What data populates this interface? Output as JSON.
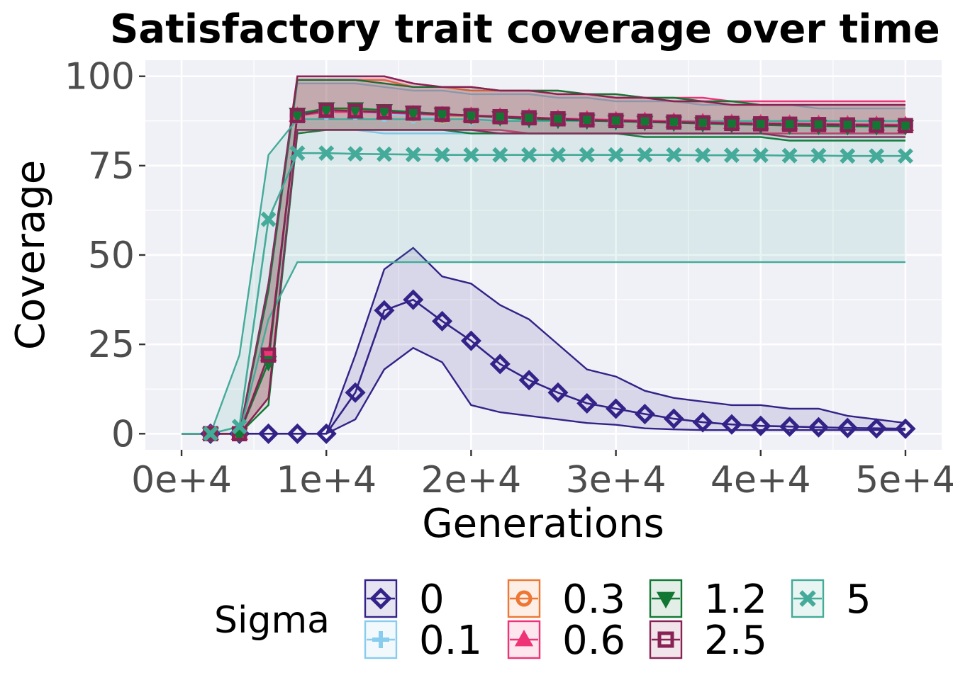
{
  "chart_data": {
    "type": "line",
    "title": "Satisfactory trait coverage over time",
    "xlabel": "Generations",
    "ylabel": "Coverage",
    "xlim": [
      -2500,
      52500
    ],
    "ylim": [
      -4.5,
      104.5
    ],
    "x_ticks": [
      0,
      10000,
      20000,
      30000,
      40000,
      50000
    ],
    "x_tick_labels": [
      "0e+4",
      "1e+4",
      "2e+4",
      "3e+4",
      "4e+4",
      "5e+4"
    ],
    "y_ticks": [
      0,
      25,
      50,
      75,
      100
    ],
    "y_tick_labels": [
      "0",
      "25",
      "50",
      "75",
      "100"
    ],
    "grid": true,
    "legend": {
      "title": "Sigma",
      "position": "bottom"
    },
    "series": [
      {
        "name": "0",
        "color": "#332288",
        "marker": "diamond",
        "x": [
          0,
          2000,
          4000,
          6000,
          8000,
          10000,
          12000,
          14000,
          16000,
          18000,
          20000,
          22000,
          24000,
          26000,
          28000,
          30000,
          32000,
          34000,
          36000,
          38000,
          40000,
          42000,
          44000,
          46000,
          48000,
          50000
        ],
        "y": [
          0,
          0,
          0,
          0,
          0,
          0,
          11.5,
          34.5,
          37.5,
          31.5,
          26,
          19.5,
          15,
          11.5,
          8.5,
          7,
          5.5,
          4.2,
          3.2,
          2.6,
          2.2,
          2,
          1.8,
          1.6,
          1.5,
          1.4
        ],
        "lower": [
          0,
          0,
          0,
          0,
          0,
          0,
          4,
          18,
          24,
          20,
          8,
          6,
          5,
          4,
          3,
          2.5,
          1.5,
          1.2,
          1,
          1,
          1,
          1,
          1,
          1,
          1,
          1
        ],
        "upper": [
          0,
          0,
          0,
          0,
          0,
          0,
          22,
          46,
          52,
          44,
          42,
          36,
          32,
          25,
          18,
          16,
          12,
          10,
          9,
          8,
          8,
          7,
          7,
          5,
          4,
          3
        ]
      },
      {
        "name": "0.1",
        "color": "#88CCEE",
        "marker": "plus",
        "x": [
          0,
          2000,
          4000,
          6000,
          8000,
          10000,
          12000,
          14000,
          16000,
          18000,
          20000,
          22000,
          24000,
          26000,
          28000,
          30000,
          32000,
          34000,
          36000,
          38000,
          40000,
          42000,
          44000,
          46000,
          48000,
          50000
        ],
        "y": [
          0,
          0,
          0,
          21,
          89,
          90,
          90,
          89.5,
          89,
          88.8,
          88.5,
          88.3,
          88,
          87.8,
          87.6,
          87.4,
          87.3,
          87.1,
          87,
          86.9,
          86.8,
          86.7,
          86.6,
          86.5,
          86.4,
          86.3
        ],
        "lower": [
          0,
          0,
          0,
          10,
          85,
          85,
          85,
          84,
          84,
          84,
          84,
          84,
          84,
          84,
          84,
          84,
          84,
          84,
          84,
          84,
          84,
          84,
          84,
          84,
          84,
          84
        ],
        "upper": [
          0,
          0,
          0,
          40,
          98,
          98,
          98,
          97,
          96,
          96,
          95,
          95,
          95,
          94,
          94,
          93,
          93,
          93,
          92,
          92,
          92,
          92,
          91,
          91,
          91,
          91
        ]
      },
      {
        "name": "0.3",
        "color": "#EE7733",
        "marker": "circle",
        "x": [
          0,
          2000,
          4000,
          6000,
          8000,
          10000,
          12000,
          14000,
          16000,
          18000,
          20000,
          22000,
          24000,
          26000,
          28000,
          30000,
          32000,
          34000,
          36000,
          38000,
          40000,
          42000,
          44000,
          46000,
          48000,
          50000
        ],
        "y": [
          0,
          0,
          0,
          22,
          89,
          90.5,
          90.5,
          90,
          89.5,
          89,
          88.8,
          88.5,
          88.3,
          88,
          87.8,
          87.6,
          87.4,
          87.2,
          87,
          86.9,
          86.8,
          86.7,
          86.6,
          86.5,
          86.4,
          86.3
        ],
        "lower": [
          0,
          0,
          0,
          10,
          84,
          85,
          85,
          85,
          85,
          85,
          85,
          85,
          84,
          84,
          84,
          84,
          84,
          84,
          84,
          84,
          84,
          84,
          84,
          84,
          84,
          84
        ],
        "upper": [
          0,
          0,
          0,
          42,
          99,
          99,
          99,
          99,
          97,
          97,
          96,
          96,
          96,
          95,
          95,
          94,
          94,
          93,
          93,
          92,
          92,
          92,
          92,
          92,
          92,
          92
        ]
      },
      {
        "name": "0.6",
        "color": "#EE3377",
        "marker": "triangle",
        "x": [
          0,
          2000,
          4000,
          6000,
          8000,
          10000,
          12000,
          14000,
          16000,
          18000,
          20000,
          22000,
          24000,
          26000,
          28000,
          30000,
          32000,
          34000,
          36000,
          38000,
          40000,
          42000,
          44000,
          46000,
          48000,
          50000
        ],
        "y": [
          0,
          0,
          0,
          22,
          89,
          90,
          90,
          89.8,
          89.5,
          89.2,
          89,
          88.8,
          88.5,
          88.2,
          88,
          87.8,
          87.6,
          87.4,
          87.2,
          87,
          86.9,
          86.8,
          86.7,
          86.6,
          86.5,
          86.4
        ],
        "lower": [
          0,
          0,
          0,
          10,
          85,
          85,
          85,
          85,
          85,
          85,
          85,
          85,
          84,
          84,
          84,
          84,
          84,
          84,
          84,
          84,
          84,
          84,
          84,
          84,
          84,
          84
        ],
        "upper": [
          0,
          0,
          0,
          42,
          100,
          100,
          100,
          100,
          98,
          97,
          97,
          96,
          96,
          96,
          95,
          95,
          94,
          94,
          94,
          93,
          93,
          93,
          93,
          93,
          93,
          93
        ]
      },
      {
        "name": "1.2",
        "color": "#117733",
        "marker": "triangle-down",
        "x": [
          0,
          2000,
          4000,
          6000,
          8000,
          10000,
          12000,
          14000,
          16000,
          18000,
          20000,
          22000,
          24000,
          26000,
          28000,
          30000,
          32000,
          34000,
          36000,
          38000,
          40000,
          42000,
          44000,
          46000,
          48000,
          50000
        ],
        "y": [
          0,
          0,
          0,
          20,
          89.5,
          91,
          91,
          90.5,
          90,
          89.5,
          89,
          88.5,
          88,
          87.8,
          87.6,
          87.4,
          87.2,
          87,
          86.8,
          86.6,
          86.4,
          86.2,
          86.1,
          86,
          86,
          86
        ],
        "lower": [
          0,
          0,
          0,
          8,
          84,
          85,
          85,
          85,
          85,
          85,
          84,
          84,
          84,
          84,
          84,
          84,
          83,
          83,
          83,
          83,
          83,
          82,
          82,
          82,
          82,
          82
        ],
        "upper": [
          0,
          0,
          0,
          40,
          99,
          99,
          99,
          98,
          97,
          97,
          97,
          96,
          96,
          96,
          95,
          95,
          94,
          94,
          93,
          93,
          92,
          92,
          92,
          92,
          92,
          92
        ]
      },
      {
        "name": "2.5",
        "color": "#882255",
        "marker": "square",
        "x": [
          0,
          2000,
          4000,
          6000,
          8000,
          10000,
          12000,
          14000,
          16000,
          18000,
          20000,
          22000,
          24000,
          26000,
          28000,
          30000,
          32000,
          34000,
          36000,
          38000,
          40000,
          42000,
          44000,
          46000,
          48000,
          50000
        ],
        "y": [
          0,
          0,
          0,
          22,
          89,
          90.5,
          90.3,
          90,
          89.7,
          89.4,
          89,
          88.7,
          88.4,
          88.1,
          87.8,
          87.6,
          87.4,
          87.2,
          87,
          86.8,
          86.7,
          86.6,
          86.5,
          86.4,
          86.3,
          86.2
        ],
        "lower": [
          0,
          0,
          0,
          10,
          85,
          85,
          85,
          85,
          85,
          85,
          85,
          84,
          84,
          84,
          84,
          84,
          84,
          84,
          84,
          84,
          84,
          83,
          83,
          83,
          83,
          83
        ],
        "upper": [
          0,
          0,
          0,
          42,
          100,
          100,
          100,
          100,
          98,
          97,
          97,
          96,
          96,
          95,
          95,
          94,
          94,
          93,
          93,
          92,
          92,
          92,
          92,
          92,
          92,
          92
        ]
      },
      {
        "name": "5",
        "color": "#44AA99",
        "marker": "cross",
        "x": [
          0,
          2000,
          4000,
          6000,
          8000,
          10000,
          12000,
          14000,
          16000,
          18000,
          20000,
          22000,
          24000,
          26000,
          28000,
          30000,
          32000,
          34000,
          36000,
          38000,
          40000,
          42000,
          44000,
          46000,
          48000,
          50000
        ],
        "y": [
          0,
          0,
          2,
          60,
          78.5,
          78.5,
          78.3,
          78.2,
          78.1,
          78,
          78,
          78,
          78,
          78,
          78,
          78,
          78,
          78,
          77.9,
          77.9,
          77.9,
          77.8,
          77.8,
          77.7,
          77.7,
          77.7
        ],
        "lower": [
          0,
          0,
          0,
          32,
          48,
          48,
          48,
          48,
          48,
          48,
          48,
          48,
          48,
          48,
          48,
          48,
          48,
          48,
          48,
          48,
          48,
          48,
          48,
          48,
          48,
          48
        ],
        "upper": [
          0,
          0,
          22,
          78,
          88,
          88,
          88,
          88,
          88,
          88,
          88,
          87.5,
          87.5,
          87.5,
          87.5,
          87.5,
          87.5,
          87.5,
          87.5,
          87.5,
          87.5,
          87.5,
          87.5,
          87.5,
          87.5,
          87.5
        ]
      }
    ]
  }
}
